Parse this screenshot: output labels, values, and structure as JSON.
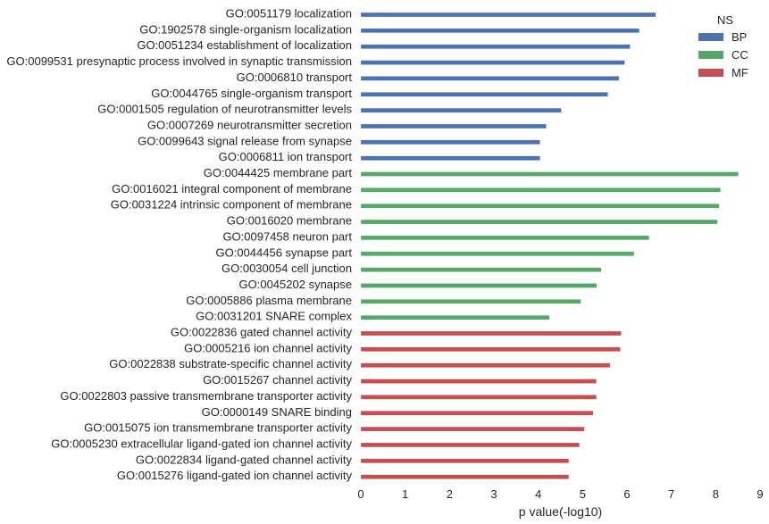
{
  "chart_data": {
    "type": "bar",
    "orientation": "horizontal",
    "xlabel": "p value(-log10)",
    "xlim": [
      0,
      9
    ],
    "xticks": [
      "0",
      "1",
      "2",
      "3",
      "4",
      "5",
      "6",
      "7",
      "8",
      "9"
    ],
    "grid": false,
    "legend": {
      "title": "NS",
      "position": "top-right",
      "entries": [
        {
          "name": "BP",
          "color": "#4c72b0"
        },
        {
          "name": "CC",
          "color": "#55a868"
        },
        {
          "name": "MF",
          "color": "#c44e52"
        }
      ]
    },
    "categories": [
      "GO:0051179 localization",
      "GO:1902578 single-organism localization",
      "GO:0051234 establishment of localization",
      "GO:0099531 presynaptic process involved in synaptic transmission",
      "GO:0006810 transport",
      "GO:0044765 single-organism transport",
      "GO:0001505 regulation of neurotransmitter levels",
      "GO:0007269 neurotransmitter secretion",
      "GO:0099643 signal release from synapse",
      "GO:0006811 ion transport",
      "GO:0044425 membrane part",
      "GO:0016021 integral component of membrane",
      "GO:0031224 intrinsic component of membrane",
      "GO:0016020 membrane",
      "GO:0097458 neuron part",
      "GO:0044456 synapse part",
      "GO:0030054 cell junction",
      "GO:0045202 synapse",
      "GO:0005886 plasma membrane",
      "GO:0031201 SNARE complex",
      "GO:0022836 gated channel activity",
      "GO:0005216 ion channel activity",
      "GO:0022838 substrate-specific channel activity",
      "GO:0015267 channel activity",
      "GO:0022803 passive transmembrane transporter activity",
      "GO:0000149 SNARE binding",
      "GO:0015075 ion transmembrane transporter activity",
      "GO:0005230 extracellular ligand-gated ion channel activity",
      "GO:0022834 ligand-gated channel activity",
      "GO:0015276 ligand-gated ion channel activity"
    ],
    "series": [
      {
        "name": "BP",
        "color": "#4c72b0",
        "values": [
          6.65,
          6.28,
          6.07,
          5.95,
          5.82,
          5.57,
          4.52,
          4.18,
          4.04,
          4.04,
          null,
          null,
          null,
          null,
          null,
          null,
          null,
          null,
          null,
          null,
          null,
          null,
          null,
          null,
          null,
          null,
          null,
          null,
          null,
          null
        ]
      },
      {
        "name": "CC",
        "color": "#55a868",
        "values": [
          null,
          null,
          null,
          null,
          null,
          null,
          null,
          null,
          null,
          null,
          8.51,
          8.11,
          8.08,
          8.04,
          6.5,
          6.16,
          5.42,
          5.32,
          4.96,
          4.25,
          null,
          null,
          null,
          null,
          null,
          null,
          null,
          null,
          null,
          null
        ]
      },
      {
        "name": "MF",
        "color": "#c44e52",
        "values": [
          null,
          null,
          null,
          null,
          null,
          null,
          null,
          null,
          null,
          null,
          null,
          null,
          null,
          null,
          null,
          null,
          null,
          null,
          null,
          null,
          5.87,
          5.85,
          5.62,
          5.31,
          5.31,
          5.24,
          5.04,
          4.93,
          4.69,
          4.69
        ]
      }
    ]
  }
}
